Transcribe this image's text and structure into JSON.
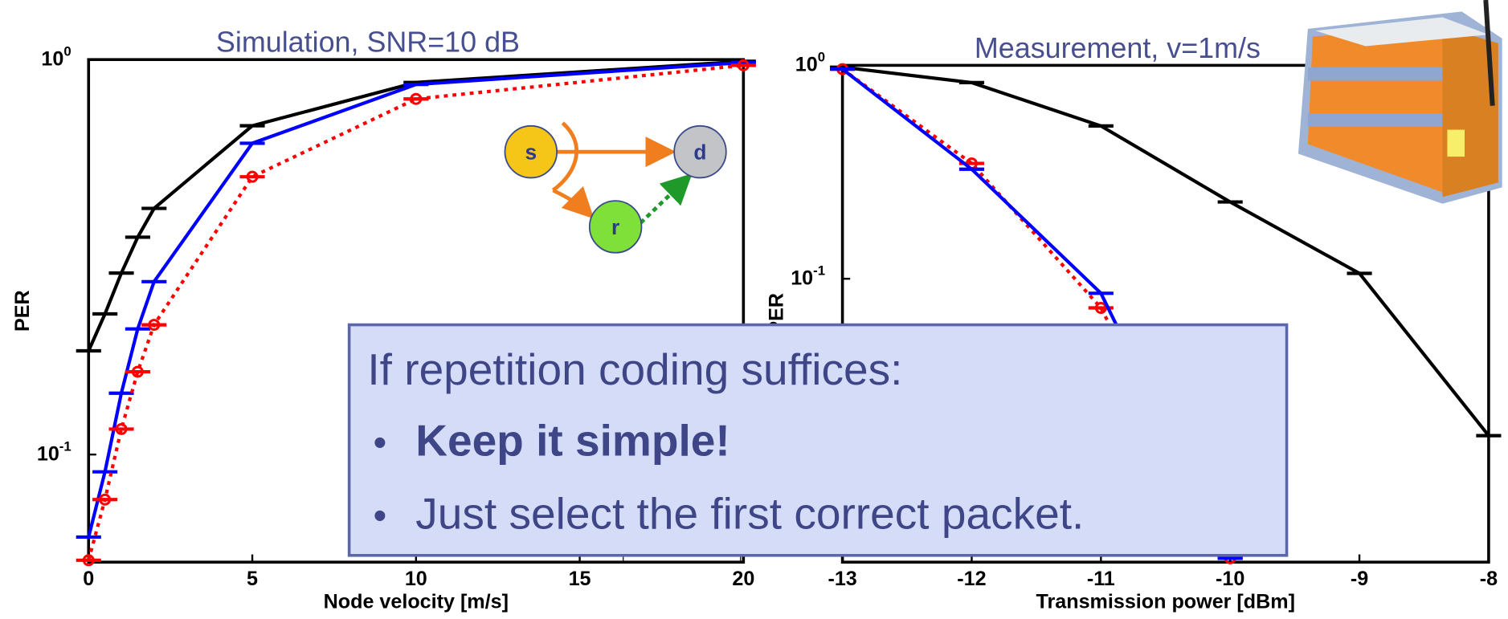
{
  "chart_data": [
    {
      "type": "line",
      "title": "Simulation, SNR=10 dB",
      "xlabel": "Node velocity [m/s]",
      "ylabel": "PER",
      "xlim": [
        0,
        20
      ],
      "xticks": [
        0,
        5,
        10,
        15,
        20
      ],
      "ylim": [
        0.0534,
        1
      ],
      "log_y": true,
      "yticks": [
        {
          "value": 1,
          "label": "10",
          "exponent": "0"
        },
        {
          "value": 0.1,
          "label": "10",
          "exponent": "-1"
        }
      ],
      "series": [
        {
          "color": "#000000",
          "style": "solid",
          "x": [
            0,
            0.5,
            1,
            1.5,
            2,
            5,
            10,
            20
          ],
          "values": [
            0.183,
            0.227,
            0.288,
            0.355,
            0.42,
            0.68,
            0.875,
            0.99
          ]
        },
        {
          "color": "#0000ff",
          "style": "solid",
          "x": [
            0,
            0.5,
            1,
            1.5,
            2,
            5,
            10,
            20
          ],
          "values": [
            0.0618,
            0.0904,
            0.143,
            0.208,
            0.274,
            0.614,
            0.865,
            0.983
          ]
        },
        {
          "color": "#ff0000",
          "style": "dotted",
          "x": [
            0,
            0.5,
            1,
            1.5,
            2,
            5,
            10,
            20
          ],
          "values": [
            0.054,
            0.0769,
            0.116,
            0.162,
            0.213,
            0.505,
            0.795,
            0.967
          ]
        }
      ]
    },
    {
      "type": "line",
      "title": "Measurement, v=1m/s",
      "xlabel": "Transmission power [dBm]",
      "ylabel": "PER",
      "xlim": [
        -13,
        -8
      ],
      "xticks": [
        -13,
        -12,
        -11,
        -10,
        -9,
        -8
      ],
      "ylim": [
        0.0047,
        1
      ],
      "log_y": true,
      "yticks": [
        {
          "value": 1,
          "label": "10",
          "exponent": "0"
        },
        {
          "value": 0.1,
          "label": "10",
          "exponent": "-1"
        }
      ],
      "series": [
        {
          "color": "#000000",
          "style": "solid",
          "x": [
            -13,
            -12,
            -11,
            -10,
            -9,
            -8
          ],
          "values": [
            0.98,
            0.83,
            0.52,
            0.229,
            0.106,
            0.0184
          ]
        },
        {
          "color": "#ff0000",
          "style": "dotted",
          "x": [
            -13,
            -12,
            -11,
            -10
          ],
          "values": [
            0.96,
            0.347,
            0.073,
            0.0049
          ]
        },
        {
          "color": "#0000ff",
          "style": "solid",
          "x": [
            -13,
            -12,
            -11,
            -10
          ],
          "values": [
            0.96,
            0.326,
            0.0855,
            0.0049
          ]
        }
      ]
    }
  ],
  "diagram": {
    "nodes": [
      {
        "label": "s"
      },
      {
        "label": "d"
      },
      {
        "label": "r"
      }
    ]
  },
  "callout": {
    "heading": "If repetition coding suffices:",
    "bullets": [
      "Keep it simple!",
      "Just select the first correct packet."
    ]
  }
}
